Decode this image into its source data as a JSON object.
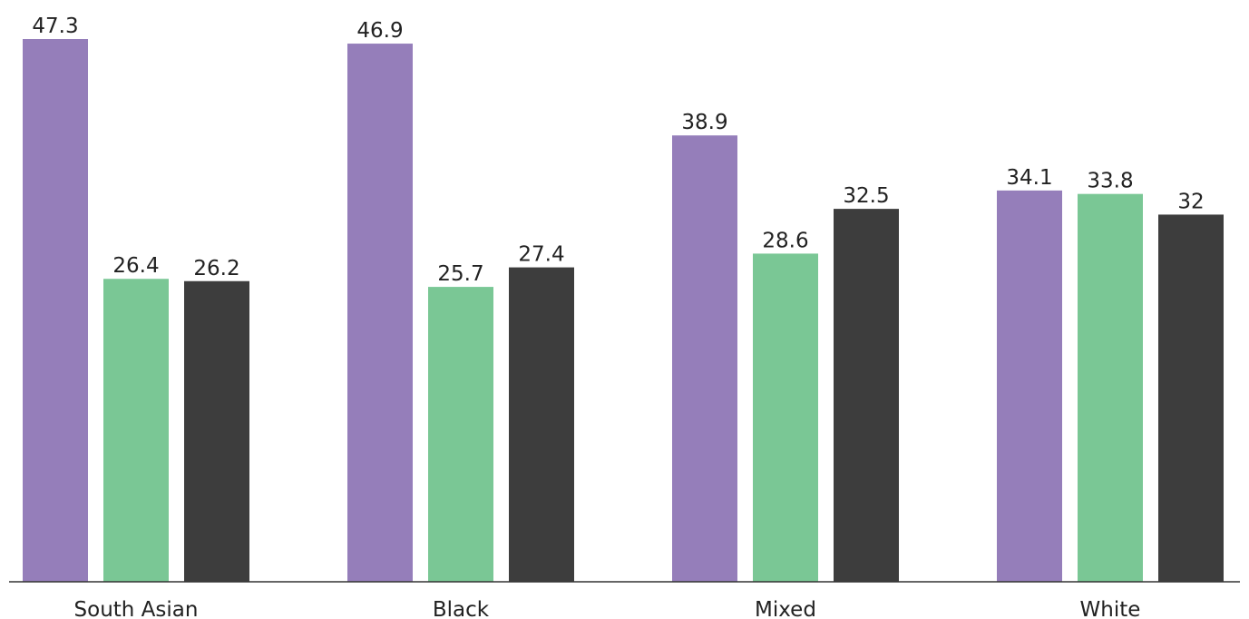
{
  "chart_data": {
    "type": "bar",
    "categories": [
      "South Asian",
      "Black",
      "Mixed",
      "White"
    ],
    "series": [
      {
        "values": [
          47.3,
          46.9,
          38.9,
          34.1
        ],
        "color": "#957EBA"
      },
      {
        "values": [
          26.4,
          25.7,
          28.6,
          33.8
        ],
        "color": "#7AC795"
      },
      {
        "values": [
          26.2,
          27.4,
          32.5,
          32
        ],
        "color": "#3D3D3D"
      }
    ],
    "value_labels": [
      [
        "47.3",
        "46.9",
        "38.9",
        "34.1"
      ],
      [
        "26.4",
        "25.7",
        "28.6",
        "33.8"
      ],
      [
        "26.2",
        "27.4",
        "32.5",
        "32"
      ]
    ],
    "title": "",
    "xlabel": "",
    "ylabel": "",
    "ylim": [
      0,
      47.3
    ],
    "grid": false,
    "axis_color": "#333333"
  }
}
